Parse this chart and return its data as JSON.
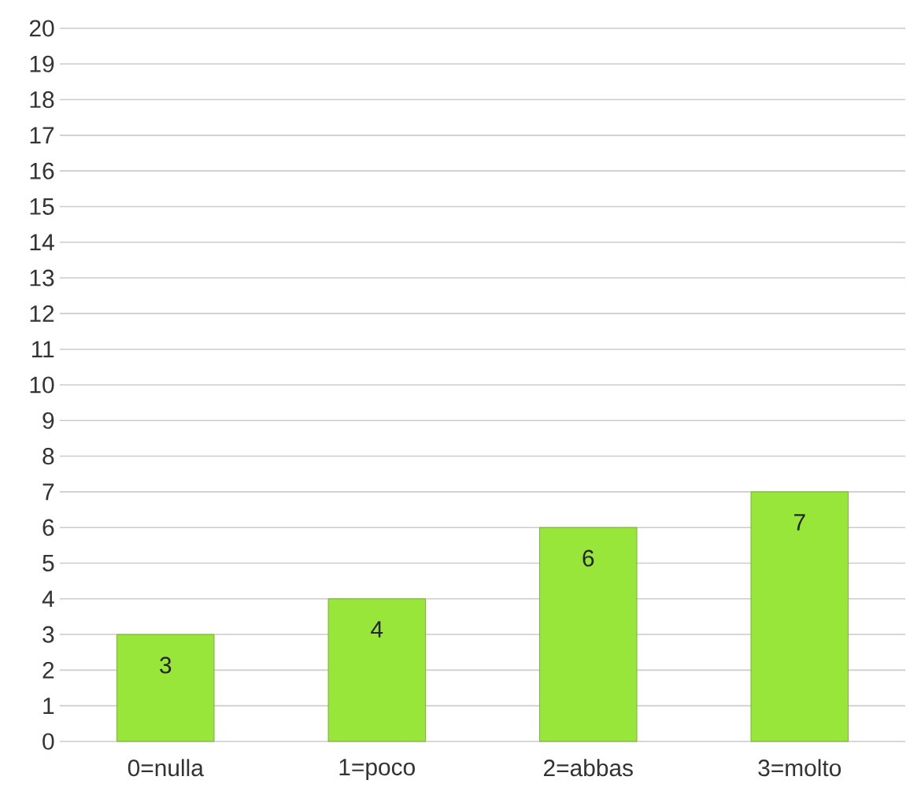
{
  "chart_data": {
    "type": "bar",
    "categories": [
      "0=nulla",
      "1=poco",
      "2=abbas",
      "3=molto"
    ],
    "values": [
      3,
      4,
      6,
      7
    ],
    "color": "#99e63a",
    "ylim": [
      0,
      20
    ],
    "yticks": [
      0,
      1,
      2,
      3,
      4,
      5,
      6,
      7,
      8,
      9,
      10,
      11,
      12,
      13,
      14,
      15,
      16,
      17,
      18,
      19,
      20
    ],
    "grid": "y",
    "data_labels": true
  }
}
